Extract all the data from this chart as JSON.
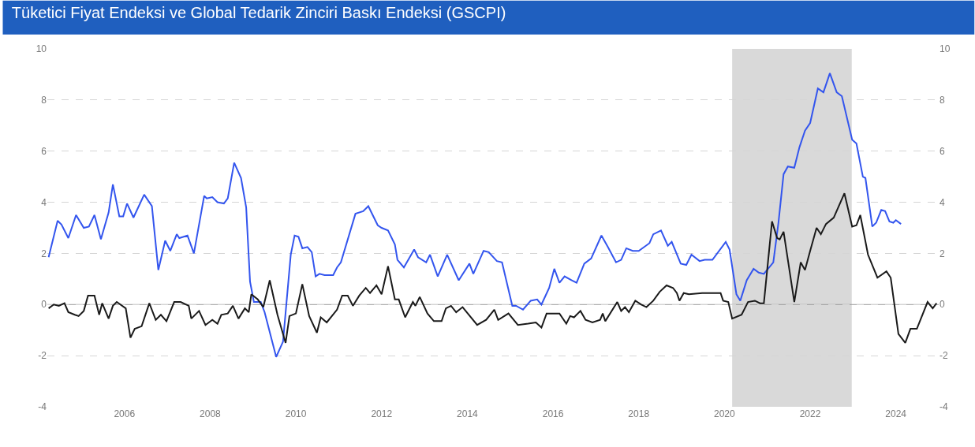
{
  "chart_data": {
    "type": "line",
    "title": "Tüketici Fiyat Endeksi ve Global Tedarik Zinciri Baskı Endeksi (GSCPI)",
    "xlim": [
      2004.2,
      2025.0
    ],
    "xticks": [
      2006,
      2008,
      2010,
      2012,
      2014,
      2016,
      2018,
      2020,
      2022,
      2024
    ],
    "ylim": [
      -4,
      10
    ],
    "yticks": [
      -4,
      -2,
      0,
      2,
      4,
      6,
      8,
      10
    ],
    "y2lim": [
      -4,
      10
    ],
    "y2ticks": [
      -4,
      -2,
      0,
      2,
      4,
      6,
      8,
      10
    ],
    "grid": "y",
    "marker": "none",
    "line_style": "solid",
    "bands": [
      {
        "axis": "x",
        "from": 2020.18,
        "to": 2022.97,
        "color": "#d9d9d9"
      }
    ],
    "ref_lines": [
      {
        "axis": "y",
        "value": 0,
        "color": "#999999",
        "line_style": "solid"
      }
    ],
    "series": [
      {
        "color": "#3355ee",
        "x": [
          2004.23,
          2004.44,
          2004.53,
          2004.69,
          2004.87,
          2005.05,
          2005.17,
          2005.3,
          2005.45,
          2005.63,
          2005.73,
          2005.88,
          2005.97,
          2006.06,
          2006.21,
          2006.46,
          2006.64,
          2006.79,
          2006.95,
          2007.07,
          2007.22,
          2007.28,
          2007.47,
          2007.62,
          2007.86,
          2007.92,
          2008.05,
          2008.17,
          2008.32,
          2008.41,
          2008.56,
          2008.72,
          2008.84,
          2008.93,
          2009.02,
          2009.18,
          2009.27,
          2009.54,
          2009.7,
          2009.88,
          2009.97,
          2010.06,
          2010.15,
          2010.27,
          2010.37,
          2010.46,
          2010.55,
          2010.67,
          2010.87,
          2010.96,
          2011.05,
          2011.39,
          2011.57,
          2011.69,
          2011.91,
          2012.0,
          2012.15,
          2012.31,
          2012.37,
          2012.52,
          2012.76,
          2012.85,
          2013.04,
          2013.13,
          2013.31,
          2013.53,
          2013.8,
          2014.05,
          2014.14,
          2014.38,
          2014.5,
          2014.69,
          2014.81,
          2015.05,
          2015.14,
          2015.3,
          2015.48,
          2015.63,
          2015.73,
          2015.91,
          2016.03,
          2016.15,
          2016.27,
          2016.43,
          2016.55,
          2016.73,
          2016.89,
          2017.13,
          2017.28,
          2017.47,
          2017.59,
          2017.71,
          2017.86,
          2018.0,
          2018.25,
          2018.34,
          2018.52,
          2018.68,
          2018.77,
          2018.98,
          2019.11,
          2019.23,
          2019.42,
          2019.54,
          2019.72,
          2020.03,
          2020.12,
          2020.28,
          2020.37,
          2020.52,
          2020.68,
          2020.8,
          2020.92,
          2021.14,
          2021.26,
          2021.38,
          2021.48,
          2021.63,
          2021.75,
          2021.88,
          2022.0,
          2022.18,
          2022.31,
          2022.46,
          2022.62,
          2022.74,
          2022.98,
          2023.08,
          2023.23,
          2023.29,
          2023.45,
          2023.54,
          2023.66,
          2023.75,
          2023.85,
          2023.94,
          2024.0,
          2024.12
        ],
        "values": [
          1.85,
          3.28,
          3.13,
          2.6,
          3.5,
          3.0,
          3.05,
          3.5,
          2.55,
          3.6,
          4.7,
          3.45,
          3.45,
          3.95,
          3.4,
          4.3,
          3.85,
          1.35,
          2.5,
          2.1,
          2.75,
          2.6,
          2.7,
          2.0,
          4.25,
          4.15,
          4.2,
          4.0,
          3.95,
          4.15,
          5.55,
          4.95,
          3.8,
          0.9,
          0.1,
          0.1,
          -0.3,
          -2.05,
          -1.45,
          1.95,
          2.7,
          2.65,
          2.2,
          2.25,
          2.05,
          1.1,
          1.2,
          1.15,
          1.15,
          1.45,
          1.65,
          3.55,
          3.65,
          3.85,
          3.1,
          3.0,
          2.9,
          2.35,
          1.75,
          1.45,
          2.15,
          1.85,
          1.65,
          1.95,
          1.1,
          1.95,
          0.95,
          1.6,
          1.2,
          2.1,
          2.05,
          1.7,
          1.65,
          -0.05,
          -0.05,
          -0.2,
          0.15,
          0.2,
          0.0,
          0.65,
          1.4,
          0.85,
          1.1,
          0.95,
          0.85,
          1.6,
          1.8,
          2.7,
          2.25,
          1.65,
          1.75,
          2.2,
          2.1,
          2.1,
          2.4,
          2.75,
          2.9,
          2.3,
          2.45,
          1.6,
          1.55,
          1.95,
          1.7,
          1.75,
          1.75,
          2.45,
          2.15,
          0.4,
          0.15,
          0.95,
          1.4,
          1.25,
          1.2,
          1.65,
          3.2,
          5.1,
          5.4,
          5.35,
          6.15,
          6.8,
          7.1,
          8.45,
          8.3,
          9.05,
          8.3,
          8.15,
          6.45,
          6.3,
          5.0,
          4.95,
          3.05,
          3.2,
          3.7,
          3.65,
          3.25,
          3.2,
          3.3,
          3.15
        ]
      },
      {
        "color": "#1a1a1a",
        "x": [
          2004.23,
          2004.35,
          2004.47,
          2004.6,
          2004.69,
          2004.84,
          2004.93,
          2005.05,
          2005.15,
          2005.3,
          2005.41,
          2005.48,
          2005.63,
          2005.73,
          2005.82,
          2006.03,
          2006.14,
          2006.24,
          2006.4,
          2006.58,
          2006.73,
          2006.85,
          2006.98,
          2007.16,
          2007.31,
          2007.5,
          2007.56,
          2007.74,
          2007.89,
          2008.05,
          2008.17,
          2008.26,
          2008.41,
          2008.53,
          2008.66,
          2008.81,
          2008.9,
          2008.96,
          2009.11,
          2009.24,
          2009.39,
          2009.57,
          2009.76,
          2009.85,
          2010.0,
          2010.15,
          2010.31,
          2010.49,
          2010.58,
          2010.72,
          2010.96,
          2011.08,
          2011.21,
          2011.33,
          2011.48,
          2011.63,
          2011.73,
          2011.88,
          2012.0,
          2012.15,
          2012.31,
          2012.4,
          2012.55,
          2012.73,
          2012.79,
          2012.89,
          2013.07,
          2013.22,
          2013.4,
          2013.5,
          2013.62,
          2013.74,
          2013.89,
          2014.23,
          2014.44,
          2014.63,
          2014.72,
          2014.96,
          2015.18,
          2015.42,
          2015.6,
          2015.73,
          2015.85,
          2015.97,
          2016.15,
          2016.31,
          2016.4,
          2016.49,
          2016.64,
          2016.76,
          2016.92,
          2017.1,
          2017.16,
          2017.22,
          2017.5,
          2017.59,
          2017.68,
          2017.77,
          2017.92,
          2018.06,
          2018.18,
          2018.34,
          2018.49,
          2018.65,
          2018.8,
          2018.89,
          2018.95,
          2019.05,
          2019.17,
          2019.48,
          2019.72,
          2019.91,
          2019.97,
          2020.09,
          2020.18,
          2020.4,
          2020.55,
          2020.71,
          2020.83,
          2020.92,
          2021.11,
          2021.23,
          2021.29,
          2021.38,
          2021.63,
          2021.78,
          2021.88,
          2022.0,
          2022.15,
          2022.25,
          2022.37,
          2022.55,
          2022.8,
          2022.98,
          2023.08,
          2023.17,
          2023.35,
          2023.57,
          2023.78,
          2023.88,
          2024.06,
          2024.22,
          2024.34,
          2024.49,
          2024.74,
          2024.86,
          2024.95
        ],
        "values": [
          -0.15,
          0.0,
          -0.05,
          0.05,
          -0.3,
          -0.4,
          -0.45,
          -0.25,
          0.35,
          0.35,
          -0.4,
          0.05,
          -0.55,
          -0.05,
          0.1,
          -0.15,
          -1.3,
          -0.95,
          -0.85,
          0.05,
          -0.6,
          -0.4,
          -0.65,
          0.1,
          0.1,
          -0.05,
          -0.55,
          -0.25,
          -0.8,
          -0.6,
          -0.75,
          -0.4,
          -0.35,
          -0.05,
          -0.55,
          -0.15,
          -0.3,
          0.4,
          0.2,
          -0.1,
          0.95,
          -0.4,
          -1.5,
          -0.45,
          -0.35,
          0.8,
          -0.45,
          -1.1,
          -0.5,
          -0.7,
          -0.2,
          0.35,
          0.35,
          -0.05,
          0.35,
          0.65,
          0.45,
          0.75,
          0.4,
          1.5,
          0.2,
          0.2,
          -0.5,
          0.1,
          -0.05,
          0.3,
          -0.35,
          -0.65,
          -0.65,
          -0.15,
          -0.05,
          -0.3,
          -0.1,
          -0.8,
          -0.6,
          -0.2,
          -0.6,
          -0.35,
          -0.8,
          -0.75,
          -0.7,
          -0.9,
          -0.35,
          -0.35,
          -0.35,
          -0.75,
          -0.45,
          -0.5,
          -0.25,
          -0.6,
          -0.7,
          -0.6,
          -0.35,
          -0.65,
          0.1,
          -0.25,
          -0.1,
          -0.3,
          0.15,
          0.0,
          -0.1,
          0.15,
          0.5,
          0.75,
          0.65,
          0.45,
          0.15,
          0.45,
          0.4,
          0.45,
          0.45,
          0.45,
          0.15,
          0.1,
          -0.55,
          -0.4,
          0.1,
          0.15,
          0.05,
          0.05,
          3.25,
          2.6,
          2.55,
          2.85,
          0.1,
          1.65,
          1.35,
          2.1,
          3.0,
          2.75,
          3.15,
          3.4,
          4.35,
          3.05,
          3.1,
          3.5,
          1.95,
          1.05,
          1.3,
          1.05,
          -1.15,
          -1.5,
          -0.95,
          -0.95,
          0.1,
          -0.15,
          0.05
        ]
      }
    ]
  }
}
